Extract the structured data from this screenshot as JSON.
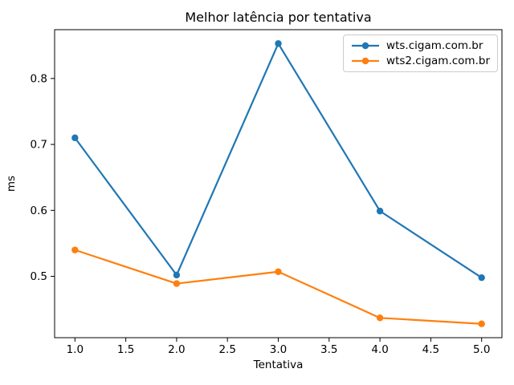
{
  "chart_data": {
    "type": "line",
    "title": "Melhor latência por tentativa",
    "xlabel": "Tentativa",
    "ylabel": "ms",
    "x": [
      1,
      2,
      3,
      4,
      5
    ],
    "series": [
      {
        "name": "wts.cigam.com.br",
        "color": "#1f77b4",
        "values": [
          0.71,
          0.502,
          0.853,
          0.599,
          0.498
        ]
      },
      {
        "name": "wts2.cigam.com.br",
        "color": "#ff7f0e",
        "values": [
          0.54,
          0.489,
          0.507,
          0.437,
          0.428
        ]
      }
    ],
    "xlim": [
      0.8,
      5.2
    ],
    "ylim": [
      0.407,
      0.874
    ],
    "xticks": [
      1.0,
      1.5,
      2.0,
      2.5,
      3.0,
      3.5,
      4.0,
      4.5,
      5.0
    ],
    "yticks": [
      0.5,
      0.6,
      0.7,
      0.8
    ],
    "grid": false,
    "legend_position": "upper right",
    "marker": "circle",
    "axis_color": "#000000",
    "background_color": "#ffffff"
  }
}
